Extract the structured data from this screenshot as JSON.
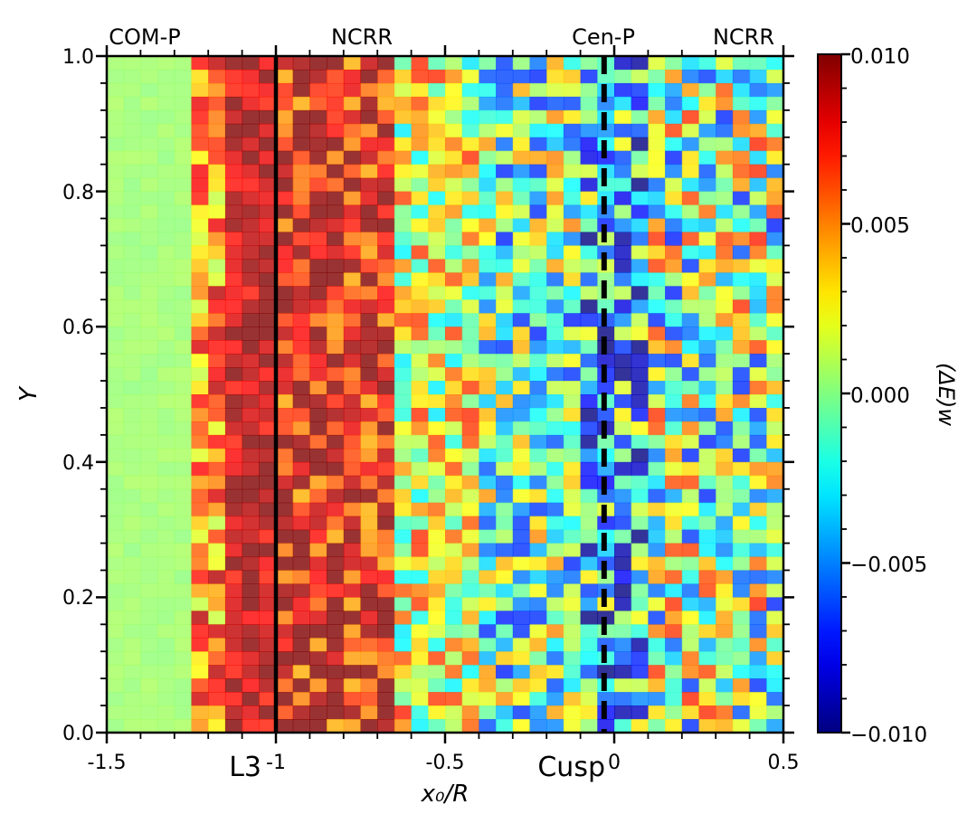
{
  "chart_data": {
    "type": "heatmap",
    "title": "",
    "xlabel": "x₀/R",
    "ylabel": "Y",
    "colorbar_label": "(ΔE)w",
    "xlim": [
      -1.5,
      0.5
    ],
    "ylim": [
      0.0,
      1.0
    ],
    "zlim": [
      -0.01,
      0.01
    ],
    "colormap": "jet",
    "x_ticks": [
      {
        "value": -1.5,
        "label": "-1.5"
      },
      {
        "value": -1.0,
        "label": "-1"
      },
      {
        "value": -0.5,
        "label": "-0.5"
      },
      {
        "value": 0.0,
        "label": "0"
      },
      {
        "value": 0.5,
        "label": "0.5"
      }
    ],
    "y_ticks": [
      {
        "value": 0.0,
        "label": "0.0"
      },
      {
        "value": 0.2,
        "label": "0.2"
      },
      {
        "value": 0.4,
        "label": "0.4"
      },
      {
        "value": 0.6,
        "label": "0.6"
      },
      {
        "value": 0.8,
        "label": "0.8"
      },
      {
        "value": 1.0,
        "label": "1.0"
      }
    ],
    "colorbar_ticks": [
      {
        "value": 0.01,
        "label": "0.010"
      },
      {
        "value": 0.005,
        "label": "0.005"
      },
      {
        "value": 0.0,
        "label": "0.000"
      },
      {
        "value": -0.005,
        "label": "−0.005"
      },
      {
        "value": -0.01,
        "label": "−0.010"
      }
    ],
    "vertical_lines": [
      {
        "name": "L3",
        "x": -1.0,
        "style": "solid",
        "color": "#000000"
      },
      {
        "name": "Cusp",
        "x": -0.03,
        "style": "dashed",
        "color": "#000000"
      }
    ],
    "x_markers": [
      {
        "label": "L3",
        "x": -1.0
      },
      {
        "label": "Cusp",
        "x": -0.03
      }
    ],
    "region_labels": [
      {
        "label": "COM-P",
        "x": -1.38
      },
      {
        "label": "NCRR",
        "x": -0.74
      },
      {
        "label": "Cen-P",
        "x": -0.03
      },
      {
        "label": "NCRR",
        "x": 0.37
      }
    ],
    "grid": {
      "nx": 40,
      "ny": 50,
      "x_range": [
        -1.5,
        0.5
      ],
      "y_range": [
        0.0,
        1.0
      ],
      "columns": [
        {
          "x_from": -1.5,
          "x_to": -1.25,
          "typical_value": 0.0005,
          "spread": 0.0003
        },
        {
          "x_from": -1.25,
          "x_to": -1.15,
          "typical_value": 0.005,
          "spread": 0.004
        },
        {
          "x_from": -1.15,
          "x_to": -1.0,
          "typical_value": 0.009,
          "spread": 0.002
        },
        {
          "x_from": -1.0,
          "x_to": -0.65,
          "typical_value": 0.008,
          "spread": 0.004
        },
        {
          "x_from": -0.65,
          "x_to": -0.4,
          "typical_value": 0.002,
          "spread": 0.005
        },
        {
          "x_from": -0.4,
          "x_to": -0.1,
          "typical_value": -0.001,
          "spread": 0.006
        },
        {
          "x_from": -0.1,
          "x_to": 0.1,
          "typical_value": -0.004,
          "spread": 0.007
        },
        {
          "x_from": 0.1,
          "x_to": 0.5,
          "typical_value": 0.0,
          "spread": 0.007
        }
      ]
    }
  }
}
